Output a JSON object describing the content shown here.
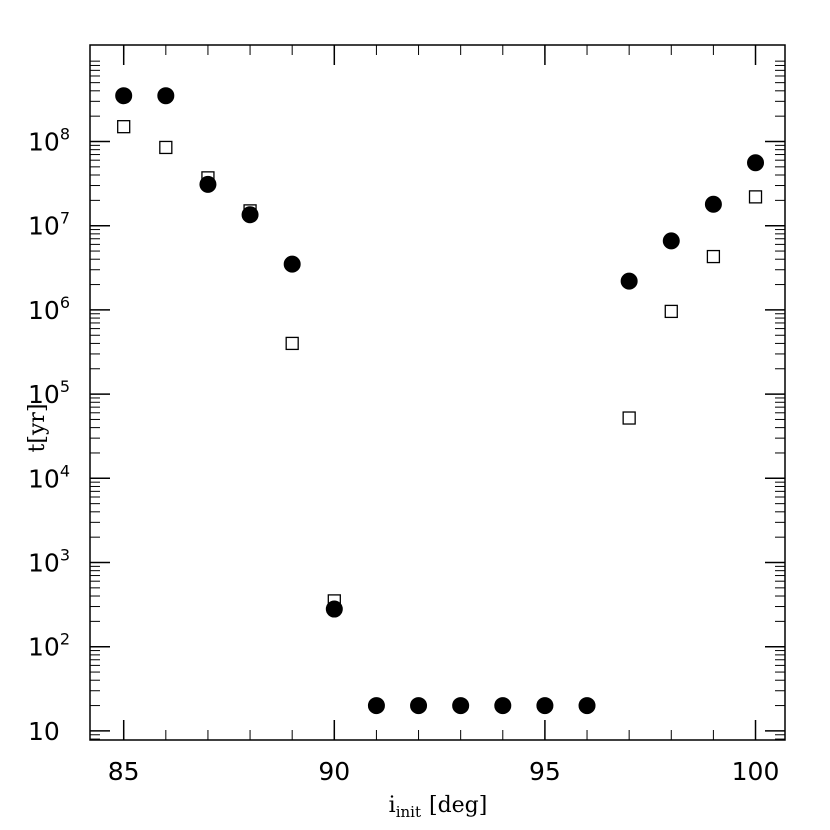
{
  "chart_data": {
    "type": "scatter",
    "xlabel": "i",
    "xlabel_sub": "init",
    "xlabel_unit": "[deg]",
    "ylabel": "t[yr]",
    "xlim": [
      84.2,
      100.7
    ],
    "ylim": [
      7.8,
      1400000000
    ],
    "y_scale": "log",
    "grid": false,
    "x_ticks": [
      {
        "value": 85,
        "label": "85"
      },
      {
        "value": 90,
        "label": "90"
      },
      {
        "value": 95,
        "label": "95"
      },
      {
        "value": 100,
        "label": "100"
      }
    ],
    "y_ticks": [
      {
        "value": 10,
        "label": "10",
        "sup": ""
      },
      {
        "value": 100,
        "label": "10",
        "sup": "2"
      },
      {
        "value": 1000,
        "label": "10",
        "sup": "3"
      },
      {
        "value": 10000,
        "label": "10",
        "sup": "4"
      },
      {
        "value": 100000,
        "label": "10",
        "sup": "5"
      },
      {
        "value": 1000000,
        "label": "10",
        "sup": "6"
      },
      {
        "value": 10000000,
        "label": "10",
        "sup": "7"
      },
      {
        "value": 100000000,
        "label": "10",
        "sup": "8"
      }
    ],
    "series": [
      {
        "marker": "filled-circle",
        "color": "#000000",
        "points": [
          {
            "x": 85,
            "y": 350000000
          },
          {
            "x": 86,
            "y": 350000000
          },
          {
            "x": 87,
            "y": 31000000
          },
          {
            "x": 88,
            "y": 13500000
          },
          {
            "x": 89,
            "y": 3500000
          },
          {
            "x": 90,
            "y": 280
          },
          {
            "x": 91,
            "y": 20
          },
          {
            "x": 92,
            "y": 20
          },
          {
            "x": 93,
            "y": 20
          },
          {
            "x": 94,
            "y": 20
          },
          {
            "x": 95,
            "y": 20
          },
          {
            "x": 96,
            "y": 20
          },
          {
            "x": 97,
            "y": 2200000
          },
          {
            "x": 98,
            "y": 6600000
          },
          {
            "x": 99,
            "y": 18000000
          },
          {
            "x": 100,
            "y": 56000000
          }
        ]
      },
      {
        "marker": "open-square",
        "color": "#000000",
        "points": [
          {
            "x": 85,
            "y": 150000000
          },
          {
            "x": 86,
            "y": 85000000
          },
          {
            "x": 87,
            "y": 37000000
          },
          {
            "x": 88,
            "y": 15000000
          },
          {
            "x": 89,
            "y": 400000
          },
          {
            "x": 90,
            "y": 350
          },
          {
            "x": 97,
            "y": 52000
          },
          {
            "x": 98,
            "y": 960000
          },
          {
            "x": 99,
            "y": 4300000
          },
          {
            "x": 100,
            "y": 22000000
          }
        ]
      }
    ]
  }
}
